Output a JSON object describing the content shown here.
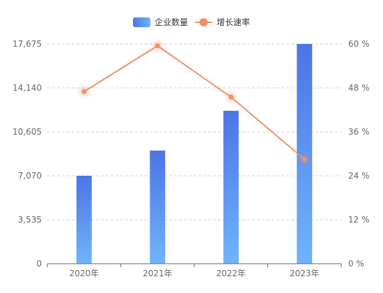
{
  "chart_data": {
    "type": "bar+line",
    "categories": [
      "2020年",
      "2021年",
      "2022年",
      "2023年"
    ],
    "series": [
      {
        "name": "企业数量",
        "type": "bar",
        "axis": "left",
        "values": [
          7070,
          9100,
          12300,
          17675
        ]
      },
      {
        "name": "增长速率",
        "type": "line",
        "axis": "right",
        "values": [
          47.0,
          59.5,
          45.5,
          28.5
        ]
      }
    ],
    "left_axis": {
      "min": 0,
      "max": 17675,
      "ticks": [
        0,
        3535,
        7070,
        10605,
        14140,
        17675
      ],
      "tick_labels": [
        "0",
        "3,535",
        "7,070",
        "10,605",
        "14,140",
        "17,675"
      ]
    },
    "right_axis": {
      "min": 0,
      "max": 60,
      "ticks": [
        0,
        12,
        24,
        36,
        48,
        60
      ],
      "tick_labels": [
        "0 %",
        "12 %",
        "24 %",
        "36 %",
        "48 %",
        "60 %"
      ]
    },
    "legend_position": "top-center",
    "grid": "horizontal-dashed",
    "colors": {
      "bar_top": "#4d74e6",
      "bar_bottom": "#6fb4fb",
      "line": "#f0906a",
      "grid": "#c8ccd6",
      "axis": "#666666"
    }
  }
}
